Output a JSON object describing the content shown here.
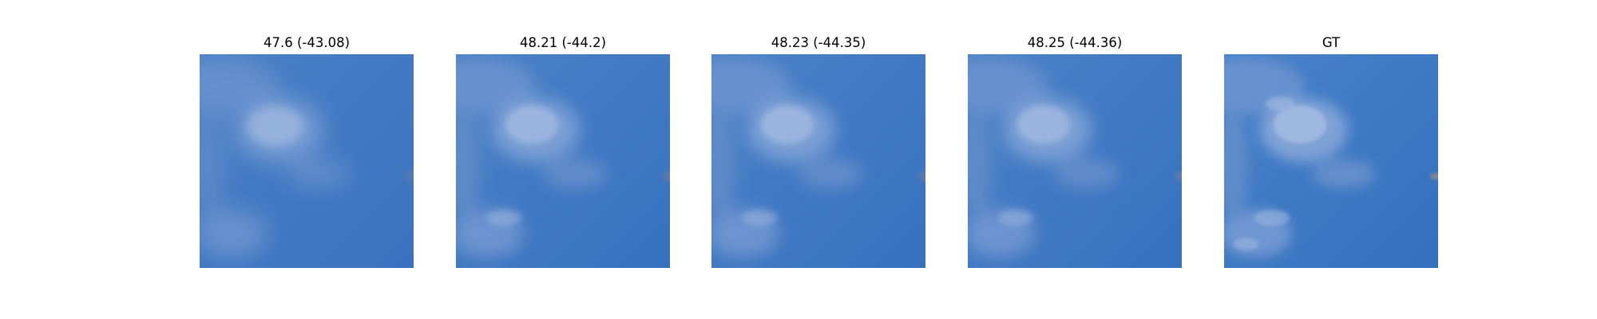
{
  "figure": {
    "panels": [
      {
        "title": "47.6 (-43.08)",
        "image": "sky-with-cloud",
        "blur": "high"
      },
      {
        "title": "48.21 (-44.2)",
        "image": "sky-with-cloud",
        "blur": "medium"
      },
      {
        "title": "48.23 (-44.35)",
        "image": "sky-with-cloud",
        "blur": "medium"
      },
      {
        "title": "48.25 (-44.36)",
        "image": "sky-with-cloud",
        "blur": "medium"
      },
      {
        "title": "GT",
        "image": "sky-with-cloud",
        "blur": "none"
      }
    ],
    "colors": {
      "sky": "#3f78c2",
      "sky_dark": "#356fbe",
      "cloud": "#a9bfe3",
      "object": "#9a8f86"
    }
  }
}
